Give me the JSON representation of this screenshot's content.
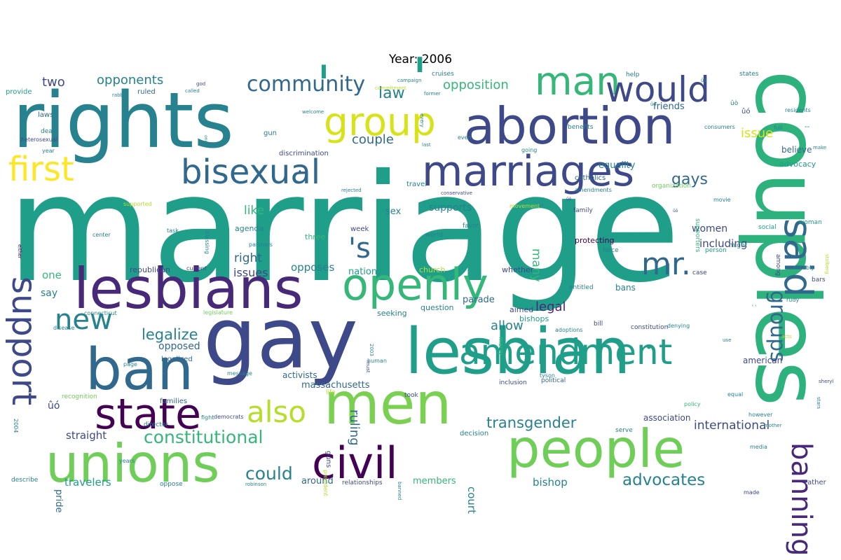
{
  "title": "Year: 2006",
  "palette": [
    "#440154",
    "#482878",
    "#3e4989",
    "#31688e",
    "#26828e",
    "#1f9e89",
    "#35b779",
    "#6ece58",
    "#b5de2b",
    "#fde725"
  ],
  "words": [
    {
      "text": "marriage",
      "color": "#1f9e89"
    },
    {
      "text": "rights",
      "color": "#26828e"
    },
    {
      "text": "couples",
      "color": "#2db27d"
    },
    {
      "text": "gay",
      "color": "#3e4989"
    },
    {
      "text": "lesbian",
      "color": "#1f9e89"
    },
    {
      "text": "lesbians",
      "color": "#482878"
    },
    {
      "text": "men",
      "color": "#7ad151"
    },
    {
      "text": "unions",
      "color": "#6ece58"
    },
    {
      "text": "people",
      "color": "#6ece58"
    },
    {
      "text": "abortion",
      "color": "#3e4989"
    },
    {
      "text": "marriages",
      "color": "#3e4989"
    },
    {
      "text": "ban",
      "color": "#31688e"
    },
    {
      "text": "openly",
      "color": "#35b779"
    },
    {
      "text": "civil",
      "color": "#440154"
    },
    {
      "text": "state",
      "color": "#440154"
    },
    {
      "text": "man",
      "color": "#35b779"
    },
    {
      "text": "group",
      "color": "#d8e219"
    },
    {
      "text": "would",
      "color": "#3e4989"
    },
    {
      "text": "bisexual",
      "color": "#31688e"
    },
    {
      "text": "said",
      "color": "#31688e"
    },
    {
      "text": "amendment",
      "color": "#1f9e89"
    },
    {
      "text": "first",
      "color": "#fde725"
    },
    {
      "text": "support",
      "color": "#3e4989"
    },
    {
      "text": "banning",
      "color": "#482878"
    },
    {
      "text": "also",
      "color": "#b5de2b"
    },
    {
      "text": "mr.",
      "color": "#31688e"
    },
    {
      "text": "community",
      "color": "#31688e"
    },
    {
      "text": "new",
      "color": "#26828e"
    },
    {
      "text": "groups",
      "color": "#31688e"
    },
    {
      "text": "constitutional",
      "color": "#35b779"
    },
    {
      "text": "'",
      "color": "#1f9e89"
    },
    {
      "text": "'s",
      "color": "#31688e"
    },
    {
      "text": "'",
      "color": "#1f9e89"
    },
    {
      "text": "transgender",
      "color": "#26828e"
    },
    {
      "text": "advocates",
      "color": "#26828e"
    },
    {
      "text": "could",
      "color": "#26828e"
    },
    {
      "text": "opponents",
      "color": "#26828e"
    },
    {
      "text": "opposition",
      "color": "#35b779"
    },
    {
      "text": "law",
      "color": "#26828e"
    },
    {
      "text": "legalize",
      "color": "#26828e"
    },
    {
      "text": "gays",
      "color": "#31688e"
    },
    {
      "text": "ruling",
      "color": "#31688e"
    },
    {
      "text": "allow",
      "color": "#26828e"
    },
    {
      "text": "legal",
      "color": "#482878"
    },
    {
      "text": "couple",
      "color": "#31688e"
    },
    {
      "text": "issue",
      "color": "#d8e219"
    },
    {
      "text": "international",
      "color": "#3e4989"
    },
    {
      "text": "like",
      "color": "#35b779"
    },
    {
      "text": "many",
      "color": "#35b779"
    },
    {
      "text": "supports",
      "color": "#26828e"
    },
    {
      "text": "two",
      "color": "#3e4989"
    },
    {
      "text": "right",
      "color": "#31688e"
    },
    {
      "text": "issues",
      "color": "#3e4989"
    },
    {
      "text": "opposes",
      "color": "#26828e"
    },
    {
      "text": "including",
      "color": "#3e4989"
    },
    {
      "text": "women",
      "color": "#3e4989"
    },
    {
      "text": "straight",
      "color": "#3e4989"
    },
    {
      "text": "court",
      "color": "#26828e"
    },
    {
      "text": "bishop",
      "color": "#26828e"
    },
    {
      "text": "travelers",
      "color": "#1f9e89"
    },
    {
      "text": "opposed",
      "color": "#31688e"
    },
    {
      "text": "one",
      "color": "#35b779"
    },
    {
      "text": "say",
      "color": "#26828e"
    },
    {
      "text": "pride",
      "color": "#31688e"
    },
    {
      "text": "massachusetts",
      "color": "#31688e"
    },
    {
      "text": "activists",
      "color": "#31688e"
    },
    {
      "text": "national",
      "color": "#1f9e89"
    },
    {
      "text": "sex",
      "color": "#26828e"
    },
    {
      "text": "members",
      "color": "#35b779"
    },
    {
      "text": "around",
      "color": "#31688e"
    },
    {
      "text": "parade",
      "color": "#31688e"
    },
    {
      "text": "bans",
      "color": "#26828e"
    },
    {
      "text": "american",
      "color": "#3e4989"
    },
    {
      "text": "association",
      "color": "#3e4989"
    },
    {
      "text": "equality",
      "color": "#26828e"
    },
    {
      "text": "friends",
      "color": "#31688e"
    },
    {
      "text": "believe",
      "color": "#31688e"
    },
    {
      "text": "advocacy",
      "color": "#1f9e89"
    },
    {
      "text": "protecting",
      "color": "#440154"
    },
    {
      "text": "republican",
      "color": "#3e4989"
    },
    {
      "text": "seeking",
      "color": "#26828e"
    },
    {
      "text": "question",
      "color": "#26828e"
    },
    {
      "text": "aimed",
      "color": "#3e4989"
    },
    {
      "text": "bishops",
      "color": "#1f9e89"
    },
    {
      "text": "whether",
      "color": "#3e4989"
    },
    {
      "text": "church",
      "color": "#b5de2b"
    },
    {
      "text": "three",
      "color": "#35b779"
    },
    {
      "text": "agenda",
      "color": "#26828e"
    },
    {
      "text": "week",
      "color": "#3e4989"
    },
    {
      "text": "laws",
      "color": "#31688e"
    },
    {
      "text": "provide",
      "color": "#1f9e89"
    },
    {
      "text": "ruled",
      "color": "#31688e"
    },
    {
      "text": "gun",
      "color": "#26828e"
    },
    {
      "text": "discrimination",
      "color": "#3e4989"
    },
    {
      "text": "decision",
      "color": "#26828e"
    },
    {
      "text": "travel",
      "color": "#26828e"
    },
    {
      "text": "catholics",
      "color": "#31688e"
    },
    {
      "text": "legalized",
      "color": "#31688e"
    },
    {
      "text": "families",
      "color": "#31688e"
    },
    {
      "text": "guns",
      "color": "#3e4989"
    },
    {
      "text": "relationships",
      "color": "#3e4989"
    },
    {
      "text": "oppose",
      "color": "#26828e"
    },
    {
      "text": "describe",
      "color": "#26828e"
    },
    {
      "text": "recognition",
      "color": "#6ece58"
    },
    {
      "text": "inclusion",
      "color": "#3e4989"
    },
    {
      "text": "political",
      "color": "#31688e"
    },
    {
      "text": "rather",
      "color": "#3e4989"
    },
    {
      "text": "case",
      "color": "#3e4989"
    },
    {
      "text": "bars",
      "color": "#3e4989"
    },
    {
      "text": "entitled",
      "color": "#26828e"
    },
    {
      "text": "constitution",
      "color": "#3e4989"
    },
    {
      "text": "serve",
      "color": "#26828e"
    },
    {
      "text": "force",
      "color": "#26828e"
    },
    {
      "text": "person",
      "color": "#1f9e89"
    },
    {
      "text": "woman",
      "color": "#1f9e89"
    },
    {
      "text": "social",
      "color": "#1f9e89"
    },
    {
      "text": "family",
      "color": "#3e4989"
    },
    {
      "text": "world",
      "color": "#26828e"
    },
    {
      "text": "favor",
      "color": "#26828e"
    },
    {
      "text": "might",
      "color": "#26828e"
    },
    {
      "text": "supporters",
      "color": "#35b779"
    },
    {
      "text": "among",
      "color": "#3e4989"
    },
    {
      "text": "marry",
      "color": "#35b779"
    },
    {
      "text": "bill",
      "color": "#3e4989"
    },
    {
      "text": "director",
      "color": "#26828e"
    },
    {
      "text": "life",
      "color": "#b5de2b"
    },
    {
      "text": "took",
      "color": "#3e4989"
    },
    {
      "text": "cruises",
      "color": "#26828e"
    },
    {
      "text": "help",
      "color": "#26828e"
    },
    {
      "text": "states",
      "color": "#26828e"
    },
    {
      "text": "organization",
      "color": "#6ece58"
    },
    {
      "text": "benefits",
      "color": "#26828e"
    },
    {
      "text": "consumers",
      "color": "#26828e"
    },
    {
      "text": "full",
      "color": "#26828e"
    },
    {
      "text": "residents",
      "color": "#26828e"
    },
    {
      "text": "even",
      "color": "#26828e"
    },
    {
      "text": "going",
      "color": "#26828e"
    },
    {
      "text": "amendments",
      "color": "#26828e"
    },
    {
      "text": "movie",
      "color": "#26828e"
    },
    {
      "text": "either",
      "color": "#440154"
    },
    {
      "text": "supported",
      "color": "#b5de2b"
    },
    {
      "text": "task",
      "color": "#26828e"
    },
    {
      "text": "center",
      "color": "#26828e"
    },
    {
      "text": "partners",
      "color": "#26828e"
    },
    {
      "text": "current",
      "color": "#3e4989"
    },
    {
      "text": "denying",
      "color": "#26828e"
    },
    {
      "text": "rudy",
      "color": "#26828e"
    },
    {
      "text": "notably",
      "color": "#26828e"
    },
    {
      "text": "blessing",
      "color": "#26828e"
    },
    {
      "text": "movement",
      "color": "#b5de2b"
    },
    {
      "text": "adoptions",
      "color": "#26828e"
    },
    {
      "text": "tyson",
      "color": "#26828e"
    },
    {
      "text": "human",
      "color": "#26828e"
    },
    {
      "text": "policy",
      "color": "#35b779"
    },
    {
      "text": "equal",
      "color": "#26828e"
    },
    {
      "text": "however",
      "color": "#26828e"
    },
    {
      "text": "made",
      "color": "#3e4989"
    },
    {
      "text": "media",
      "color": "#26828e"
    },
    {
      "text": "fight",
      "color": "#26828e"
    },
    {
      "text": "democrats",
      "color": "#3e4989"
    },
    {
      "text": "president",
      "color": "#b5de2b"
    },
    {
      "text": "robinson",
      "color": "#26828e"
    },
    {
      "text": "banned",
      "color": "#26828e"
    },
    {
      "text": "message",
      "color": "#26828e"
    },
    {
      "text": "must",
      "color": "#3e4989"
    },
    {
      "text": "2003",
      "color": "#26828e"
    },
    {
      "text": "2004",
      "color": "#26828e"
    },
    {
      "text": "legislature",
      "color": "#6ece58"
    },
    {
      "text": "connecticut",
      "color": "#26828e"
    },
    {
      "text": "disease",
      "color": "#26828e"
    },
    {
      "text": "page",
      "color": "#26828e"
    },
    {
      "text": "years",
      "color": "#26828e"
    },
    {
      "text": "stars",
      "color": "#26828e"
    },
    {
      "text": "sheryl",
      "color": "#3e4989"
    },
    {
      "text": "mother",
      "color": "#26828e"
    },
    {
      "text": "stolberg",
      "color": "#b5de2b"
    },
    {
      "text": "acts",
      "color": "#b5de2b"
    },
    {
      "text": "use",
      "color": "#26828e"
    },
    {
      "text": "year",
      "color": "#26828e"
    },
    {
      "text": "heterosexual",
      "color": "#3e4989"
    },
    {
      "text": "god",
      "color": "#3e4989"
    },
    {
      "text": "rabbis",
      "color": "#26828e"
    },
    {
      "text": "called",
      "color": "#26828e"
    },
    {
      "text": "commitment",
      "color": "#b5de2b"
    },
    {
      "text": "campaign",
      "color": "#26828e"
    },
    {
      "text": "former",
      "color": "#26828e"
    },
    {
      "text": "welcome",
      "color": "#26828e"
    },
    {
      "text": "last",
      "color": "#26828e"
    },
    {
      "text": "conservative",
      "color": "#3e4989"
    },
    {
      "text": "rejected",
      "color": "#26828e"
    },
    {
      "text": "every",
      "color": "#26828e"
    },
    {
      "text": "ones",
      "color": "#26828e"
    },
    {
      "text": "make",
      "color": "#26828e"
    },
    {
      "text": "death",
      "color": "#26828e"
    },
    {
      "text": "``",
      "color": "#26828e"
    },
    {
      "text": "--",
      "color": "#26828e"
    },
    {
      "text": "•",
      "color": "#3e4989"
    },
    {
      "text": "•",
      "color": "#1f9e89"
    },
    {
      "text": "ûó",
      "color": "#3e4989"
    },
    {
      "text": "ûó",
      "color": "#3e4989"
    },
    {
      "text": "ûò",
      "color": "#26828e"
    },
    {
      "text": "ûò",
      "color": "#26828e"
    },
    {
      "text": "ûò",
      "color": "#26828e"
    },
    {
      "text": "ûò",
      "color": "#3e4989"
    },
    {
      "text": "ûò",
      "color": "#26828e"
    },
    {
      "text": "ûò",
      "color": "#3e4989"
    },
    {
      "text": "ûò",
      "color": "#26828e"
    }
  ]
}
